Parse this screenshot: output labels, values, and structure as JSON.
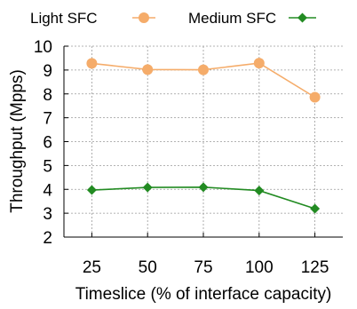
{
  "chart_data": {
    "type": "line",
    "xlabel": "Timeslice (% of interface capacity)",
    "ylabel": "Throughput (Mpps)",
    "x": [
      25,
      50,
      75,
      100,
      125
    ],
    "ylim": [
      2,
      10
    ],
    "yticks": [
      2,
      3,
      4,
      5,
      6,
      7,
      8,
      9,
      10
    ],
    "grid": "horizontal-dashed",
    "legend": "top",
    "series": [
      {
        "name": "Light SFC",
        "color": "#f5ac6a",
        "marker": "circle",
        "values": [
          9.28,
          9.02,
          9.01,
          9.29,
          7.86
        ]
      },
      {
        "name": "Medium SFC",
        "color": "#228b22",
        "marker": "diamond",
        "values": [
          3.97,
          4.08,
          4.09,
          3.95,
          3.19
        ]
      }
    ]
  }
}
